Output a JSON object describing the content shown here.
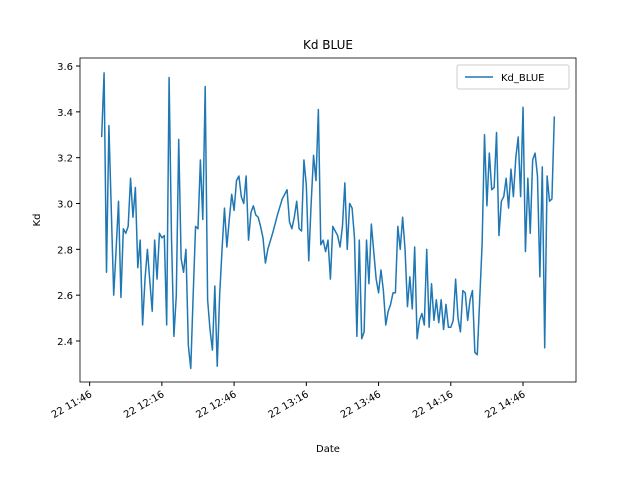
{
  "chart_data": {
    "type": "line",
    "title": "Kd BLUE",
    "x_label": "Date",
    "y_label": "Kd",
    "legend": "upper right",
    "xlim": [
      "22 11:42",
      "22 15:08"
    ],
    "xticks": [
      "22 11:46",
      "22 12:16",
      "22 12:46",
      "22 13:16",
      "22 13:46",
      "22 14:16",
      "22 14:46"
    ],
    "ylim": [
      2.221,
      3.635
    ],
    "yticks": [
      2.4,
      2.6,
      2.8,
      {
        "value": 3,
        "label": "3.0"
      },
      3.2,
      3.4,
      3.6
    ],
    "x": [
      "22 11:51",
      "22 11:52",
      "22 11:53",
      "22 11:54",
      "22 11:56",
      "22 11:57",
      "22 11:58",
      "22 11:59",
      "22 12:00",
      "22 12:01",
      "22 12:02",
      "22 12:03",
      "22 12:04",
      "22 12:05",
      "22 12:06",
      "22 12:07",
      "22 12:08",
      "22 12:09",
      "22 12:10",
      "22 12:11",
      "22 12:12",
      "22 12:13",
      "22 12:14",
      "22 12:15",
      "22 12:16",
      "22 12:17",
      "22 12:18",
      "22 12:19",
      "22 12:20",
      "22 12:21",
      "22 12:22",
      "22 12:23",
      "22 12:24",
      "22 12:25",
      "22 12:26",
      "22 12:27",
      "22 12:28",
      "22 12:29",
      "22 12:30",
      "22 12:31",
      "22 12:32",
      "22 12:33",
      "22 12:34",
      "22 12:35",
      "22 12:36",
      "22 12:37",
      "22 12:38",
      "22 12:39",
      "22 12:40",
      "22 12:41",
      "22 12:42",
      "22 12:43",
      "22 12:44",
      "22 12:45",
      "22 12:46",
      "22 12:47",
      "22 12:48",
      "22 12:49",
      "22 12:50",
      "22 12:51",
      "22 12:52",
      "22 12:53",
      "22 12:54",
      "22 12:55",
      "22 12:56",
      "22 12:57",
      "22 12:58",
      "22 12:59",
      "22 13:00",
      "22 13:02",
      "22 13:04",
      "22 13:06",
      "22 13:08",
      "22 13:09",
      "22 13:10",
      "22 13:11",
      "22 13:12",
      "22 13:13",
      "22 13:14",
      "22 13:15",
      "22 13:16",
      "22 13:17",
      "22 13:18",
      "22 13:19",
      "22 13:20",
      "22 13:21",
      "22 13:22",
      "22 13:23",
      "22 13:24",
      "22 13:25",
      "22 13:26",
      "22 13:27",
      "22 13:28",
      "22 13:29",
      "22 13:30",
      "22 13:31",
      "22 13:32",
      "22 13:33",
      "22 13:34",
      "22 13:35",
      "22 13:36",
      "22 13:37",
      "22 13:38",
      "22 13:39",
      "22 13:40",
      "22 13:41",
      "22 13:42",
      "22 13:43",
      "22 13:44",
      "22 13:45",
      "22 13:46",
      "22 13:47",
      "22 13:48",
      "22 13:49",
      "22 13:50",
      "22 13:51",
      "22 13:52",
      "22 13:53",
      "22 13:54",
      "22 13:55",
      "22 13:56",
      "22 13:57",
      "22 13:58",
      "22 13:59",
      "22 14:00",
      "22 14:01",
      "22 14:02",
      "22 14:03",
      "22 14:04",
      "22 14:05",
      "22 14:06",
      "22 14:07",
      "22 14:08",
      "22 14:09",
      "22 14:10",
      "22 14:11",
      "22 14:12",
      "22 14:13",
      "22 14:14",
      "22 14:15",
      "22 14:16",
      "22 14:17",
      "22 14:18",
      "22 14:19",
      "22 14:20",
      "22 14:21",
      "22 14:22",
      "22 14:23",
      "22 14:24",
      "22 14:25",
      "22 14:26",
      "22 14:27",
      "22 14:29",
      "22 14:30",
      "22 14:31",
      "22 14:32",
      "22 14:33",
      "22 14:34",
      "22 14:35",
      "22 14:36",
      "22 14:37",
      "22 14:38",
      "22 14:39",
      "22 14:40",
      "22 14:41",
      "22 14:42",
      "22 14:43",
      "22 14:44",
      "22 14:45",
      "22 14:46",
      "22 14:47",
      "22 14:48",
      "22 14:49",
      "22 14:50",
      "22 14:51",
      "22 14:52",
      "22 14:53",
      "22 14:54",
      "22 14:55",
      "22 14:56",
      "22 14:57",
      "22 14:58",
      "22 14:59"
    ],
    "series": [
      {
        "name": "Kd_BLUE",
        "color": "#1f77b4",
        "values": [
          3.29,
          3.57,
          2.7,
          3.34,
          2.6,
          2.8,
          3.01,
          2.59,
          2.89,
          2.87,
          2.9,
          3.11,
          2.94,
          3.07,
          2.72,
          2.84,
          2.47,
          2.67,
          2.8,
          2.66,
          2.53,
          2.84,
          2.67,
          2.87,
          2.85,
          2.86,
          2.47,
          3.55,
          2.85,
          2.42,
          2.6,
          3.28,
          2.76,
          2.7,
          2.8,
          2.38,
          2.28,
          2.6,
          2.9,
          2.89,
          3.19,
          2.93,
          3.51,
          2.58,
          2.45,
          2.36,
          2.64,
          2.29,
          2.6,
          2.8,
          2.98,
          2.81,
          2.93,
          3.04,
          2.97,
          3.1,
          3.12,
          3.03,
          3.0,
          3.12,
          2.84,
          2.96,
          2.99,
          2.95,
          2.94,
          2.9,
          2.85,
          2.74,
          2.8,
          2.87,
          2.95,
          3.02,
          3.06,
          2.92,
          2.89,
          2.94,
          3.01,
          2.89,
          2.88,
          3.19,
          3.08,
          2.75,
          3.0,
          3.21,
          3.1,
          3.41,
          2.82,
          2.84,
          2.79,
          2.84,
          2.67,
          2.9,
          2.88,
          2.86,
          2.81,
          2.9,
          3.09,
          2.8,
          3.0,
          2.98,
          2.85,
          2.42,
          2.84,
          2.41,
          2.44,
          2.84,
          2.65,
          2.91,
          2.79,
          2.67,
          2.61,
          2.71,
          2.62,
          2.47,
          2.53,
          2.56,
          2.61,
          2.61,
          2.9,
          2.8,
          2.94,
          2.8,
          2.55,
          2.68,
          2.54,
          2.81,
          2.41,
          2.49,
          2.52,
          2.47,
          2.8,
          2.46,
          2.65,
          2.49,
          2.58,
          2.48,
          2.58,
          2.45,
          2.56,
          2.46,
          2.46,
          2.49,
          2.67,
          2.5,
          2.44,
          2.62,
          2.61,
          2.49,
          2.58,
          2.62,
          2.35,
          2.34,
          2.82,
          3.3,
          2.99,
          3.22,
          3.06,
          3.07,
          3.31,
          2.86,
          3.01,
          3.03,
          3.11,
          2.98,
          3.15,
          3.03,
          3.2,
          3.29,
          3.03,
          3.42,
          2.79,
          3.11,
          2.87,
          3.19,
          3.22,
          3.12,
          2.68,
          3.16,
          2.37,
          3.12,
          3.01,
          3.02,
          3.38
        ]
      }
    ]
  }
}
